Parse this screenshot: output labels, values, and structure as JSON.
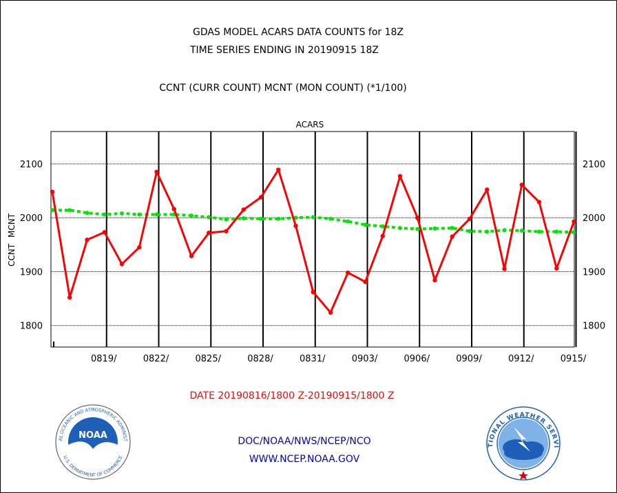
{
  "header": {
    "title_line1": "GDAS MODEL ACARS DATA COUNTS for 18Z",
    "title_line2": "TIME SERIES ENDING IN 20190915 18Z",
    "subtitle": "CCNT (CURR COUNT) MCNT (MON COUNT) (*1/100)"
  },
  "footer": {
    "date_range": "DATE 20190816/1800 Z-20190915/1800 Z",
    "org": "DOC/NOAA/NWS/NCEP/NCO",
    "website": "WWW.NCEP.NOAA.GOV"
  },
  "logos": {
    "noaa": {
      "name": "noaa-logo",
      "center_text": "NOAA",
      "ring_text": "NATIONAL OCEANIC AND ATMOSPHERIC ADMINISTRATION",
      "ring_bottom_text": "U.S. DEPARTMENT OF COMMERCE"
    },
    "nws": {
      "name": "nws-logo",
      "ring_text": "NATIONAL WEATHER SERVICE"
    }
  },
  "colors": {
    "ccnt": "#ff0000",
    "mcnt": "#00e600",
    "panel_title": "#0000cc",
    "date_text": "#ff0000",
    "footer_text": "#0000cc"
  },
  "chart_data": {
    "type": "line",
    "panel_title": "ACARS",
    "ylabel_ccnt": "CCNT",
    "ylabel_mcnt": "MCNT",
    "ylim": [
      1760,
      2160
    ],
    "yticks": [
      1800,
      1900,
      2000,
      2100
    ],
    "ytick_labels": [
      "1800",
      "1900",
      "2000",
      "2100"
    ],
    "grid_horizontal": true,
    "grid_vertical": true,
    "x_start": "2019-08-16",
    "x_end": "2019-09-15",
    "xtick_labels": [
      "0819/",
      "0822/",
      "0825/",
      "0828/",
      "0831/",
      "0903/",
      "0906/",
      "0909/",
      "0912/",
      "0915/"
    ],
    "x": [
      "0816",
      "0817",
      "0818",
      "0819",
      "0820",
      "0821",
      "0822",
      "0823",
      "0824",
      "0825",
      "0826",
      "0827",
      "0828",
      "0829",
      "0830",
      "0831",
      "0901",
      "0902",
      "0903",
      "0904",
      "0905",
      "0906",
      "0907",
      "0908",
      "0909",
      "0910",
      "0911",
      "0912",
      "0913",
      "0914",
      "0915"
    ],
    "series": [
      {
        "name": "CCNT",
        "color": "#ff0000",
        "values": [
          2048,
          1852,
          1959,
          1973,
          1914,
          1945,
          2085,
          2016,
          1929,
          1972,
          1975,
          2015,
          2038,
          2089,
          1985,
          1862,
          1824,
          1898,
          1881,
          1966,
          2077,
          2000,
          1884,
          1965,
          1998,
          2052,
          1905,
          2061,
          2029,
          1906,
          1993
        ]
      },
      {
        "name": "MCNT",
        "color": "#00e600",
        "values": [
          2014,
          2014,
          2009,
          2006,
          2008,
          2006,
          2006,
          2006,
          2004,
          2001,
          1997,
          1999,
          1998,
          1998,
          2000,
          2001,
          1998,
          1993,
          1987,
          1984,
          1981,
          1979,
          1980,
          1981,
          1975,
          1974,
          1977,
          1976,
          1974,
          1974,
          1973
        ]
      }
    ]
  }
}
